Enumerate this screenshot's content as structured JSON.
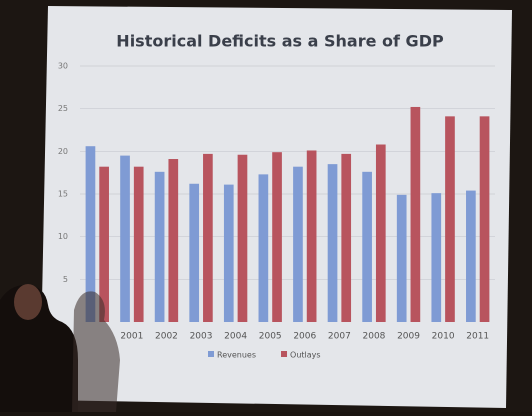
{
  "chart_data": {
    "type": "bar",
    "title": "Historical Deficits as a Share of GDP",
    "categories": [
      null,
      "2001",
      "2002",
      "2003",
      "2004",
      "2005",
      "2006",
      "2007",
      "2008",
      "2009",
      "2010",
      "2011"
    ],
    "series": [
      {
        "name": "Revenues",
        "color": "#7f9bd4",
        "values": [
          20.6,
          19.5,
          17.6,
          16.2,
          16.1,
          17.3,
          18.2,
          18.5,
          17.6,
          14.9,
          15.1,
          15.4
        ]
      },
      {
        "name": "Outlays",
        "color": "#b8545e",
        "values": [
          18.2,
          18.2,
          19.1,
          19.7,
          19.6,
          19.9,
          20.1,
          19.7,
          20.8,
          25.2,
          24.1,
          24.1
        ]
      }
    ],
    "ylim": [
      0,
      30
    ],
    "yticks": [
      5,
      10,
      15,
      20,
      25,
      30
    ],
    "grid": true,
    "legend": "bottom"
  }
}
